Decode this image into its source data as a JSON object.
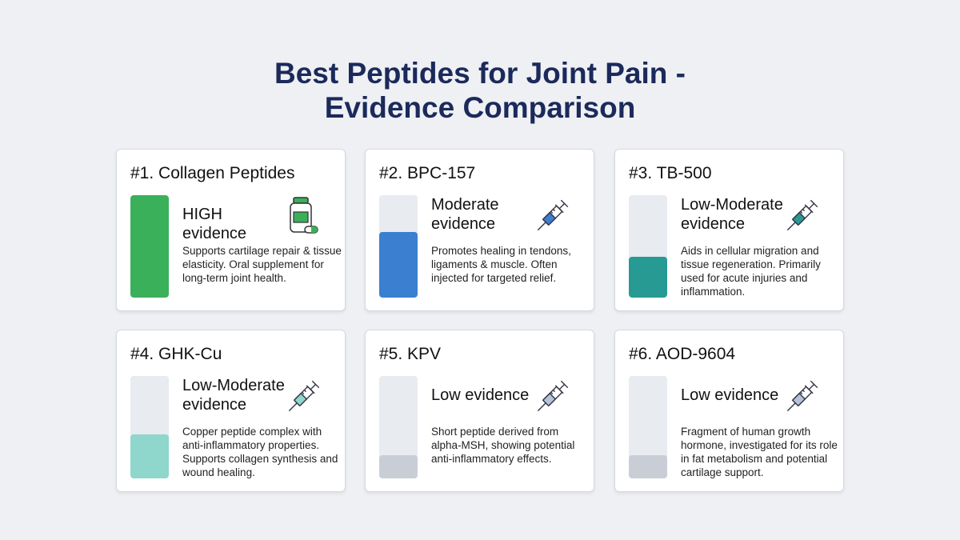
{
  "title_line1": "Best Peptides for Joint Pain -",
  "title_line2": "Evidence Comparison",
  "cards": [
    {
      "title": "#1. Collagen Peptides",
      "level": "HIGH evidence",
      "evidence_fill": 1.0,
      "color": "#3bb05a",
      "icon": "supplement-bottle-icon",
      "description": "Supports cartilage repair & tissue elasticity. Oral supplement for long-term joint health."
    },
    {
      "title": "#2. BPC-157",
      "level": "Moderate evidence",
      "evidence_fill": 0.64,
      "color": "#3a7fd0",
      "icon": "syringe-icon",
      "description": "Promotes healing in tendons, ligaments & muscle. Often injected for targeted relief."
    },
    {
      "title": "#3. TB-500",
      "level": "Low-Moderate evidence",
      "evidence_fill": 0.4,
      "color": "#279a94",
      "icon": "syringe-icon",
      "description": "Aids in cellular migration and tissue regeneration. Primarily used for acute injuries and inflammation."
    },
    {
      "title": "#4. GHK-Cu",
      "level": "Low-Moderate evidence",
      "evidence_fill": 0.43,
      "color": "#8fd6cd",
      "icon": "syringe-icon",
      "description": "Copper peptide complex with anti-inflammatory properties. Supports collagen synthesis and wound healing."
    },
    {
      "title": "#5. KPV",
      "level": "Low evidence",
      "evidence_fill": 0.23,
      "color": "#c9ced6",
      "icon": "syringe-icon",
      "description": "Short peptide derived from alpha-MSH, showing potential anti-inflammatory effects."
    },
    {
      "title": "#6. AOD-9604",
      "level": "Low evidence",
      "evidence_fill": 0.23,
      "color": "#c9ced6",
      "icon": "syringe-icon",
      "description": "Fragment of human growth hormone, investigated for its role in fat metabolism and potential cartilage support."
    }
  ]
}
